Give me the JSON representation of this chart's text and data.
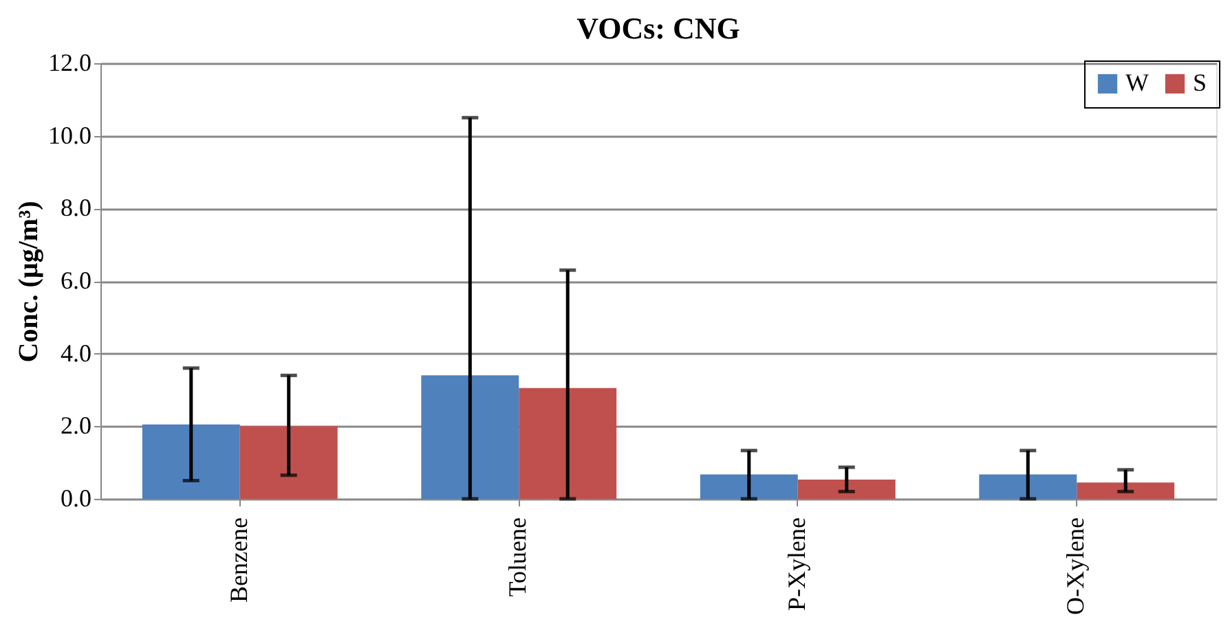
{
  "chart_data": {
    "type": "bar",
    "title": "VOCs: CNG",
    "ylabel": "Conc. (µg/m³)",
    "categories": [
      "Benzene",
      "Toluene",
      "P-Xylene",
      "O-Xylene"
    ],
    "series": [
      {
        "name": "W",
        "color": "#4f81bd",
        "values": [
          2.05,
          3.4,
          0.67,
          0.67
        ],
        "errors": [
          [
            0.5,
            3.6
          ],
          [
            0,
            10.5
          ],
          [
            0,
            1.33
          ],
          [
            0,
            1.33
          ]
        ]
      },
      {
        "name": "S",
        "color": "#c0504d",
        "values": [
          2.0,
          3.05,
          0.53,
          0.45
        ],
        "errors": [
          [
            0.65,
            3.4
          ],
          [
            0,
            6.3
          ],
          [
            0.2,
            0.87
          ],
          [
            0.2,
            0.8
          ]
        ]
      }
    ],
    "ylim": [
      0,
      12
    ],
    "yticks": [
      {
        "value": 0,
        "label": "0.0"
      },
      {
        "value": 2,
        "label": "2.0"
      },
      {
        "value": 4,
        "label": "4.0"
      },
      {
        "value": 6,
        "label": "6.0"
      },
      {
        "value": 8,
        "label": "8.0"
      },
      {
        "value": 10,
        "label": "10.0"
      },
      {
        "value": 12,
        "label": "12.0"
      }
    ],
    "grid": "y",
    "legend": "top right"
  }
}
